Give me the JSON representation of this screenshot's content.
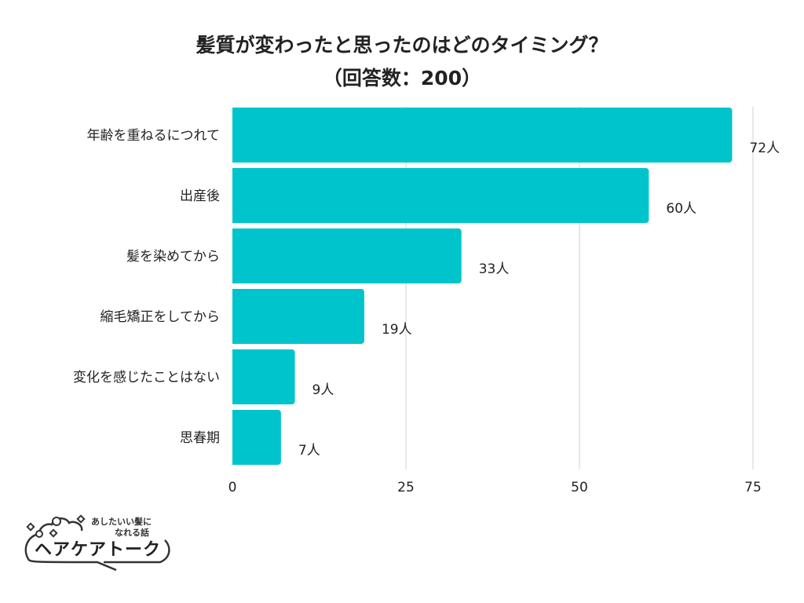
{
  "chart_data": {
    "type": "bar",
    "orientation": "horizontal",
    "title": "髪質が変わったと思ったのはどのタイミング？",
    "subtitle": "（回答数：200）",
    "categories": [
      "年齢を重ねるにつれて",
      "出産後",
      "髪を染めてから",
      "縮毛矯正をしてから",
      "変化を感じたことはない",
      "思春期"
    ],
    "values": [
      72,
      60,
      33,
      19,
      9,
      7
    ],
    "value_suffix": "人",
    "xlim": [
      0,
      75
    ],
    "xticks": [
      "0",
      "25",
      "50",
      "75"
    ],
    "grid": true,
    "bar_color": "#00C4CC",
    "xlabel": "",
    "ylabel": ""
  },
  "logo": {
    "tagline_1": "あしたいい髪に",
    "tagline_2": "なれる話",
    "name": "ヘアケアトーク"
  }
}
